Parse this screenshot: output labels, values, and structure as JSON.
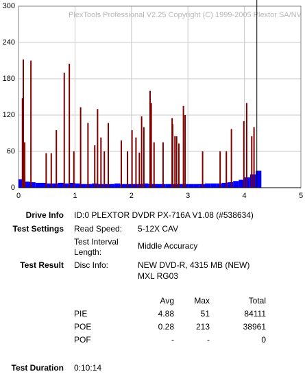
{
  "chart_data": {
    "type": "bar",
    "title": "PlexTools Professional V2.25 Copyright (C) 1999-2005 Plextor SA/NV",
    "series": [
      {
        "color": "#0000ff",
        "x": [
          0,
          0.1,
          0.2,
          0.3,
          0.4,
          0.5,
          0.6,
          0.7,
          0.8,
          0.9,
          1.0,
          1.1,
          1.2,
          1.3,
          1.4,
          1.5,
          1.6,
          1.7,
          1.8,
          1.9,
          2.0,
          2.1,
          2.2,
          2.3,
          2.4,
          2.5,
          2.6,
          2.7,
          2.8,
          2.9,
          3.0,
          3.1,
          3.2,
          3.3,
          3.4,
          3.5,
          3.6,
          3.7,
          3.8,
          3.9,
          4.0,
          4.1,
          4.2
        ],
        "values": [
          14,
          10,
          9,
          8,
          8,
          7,
          7,
          8,
          7,
          8,
          7,
          6,
          6,
          7,
          6,
          6,
          6,
          7,
          6,
          6,
          6,
          6,
          7,
          6,
          6,
          6,
          6,
          6,
          6,
          6,
          6,
          6,
          6,
          7,
          7,
          7,
          8,
          9,
          11,
          13,
          17,
          22,
          28
        ]
      },
      {
        "color": "#800000",
        "x": [
          0.07,
          0.085,
          0.11,
          0.22,
          0.49,
          0.58,
          0.67,
          0.81,
          0.9,
          0.98,
          1.1,
          1.23,
          1.35,
          1.4,
          1.46,
          1.52,
          1.59,
          1.82,
          1.93,
          2.01,
          2.08,
          2.14,
          2.18,
          2.22,
          2.33,
          2.35,
          2.4,
          2.56,
          2.72,
          2.73,
          2.77,
          2.8,
          2.84,
          2.92,
          2.95,
          3.26,
          3.57,
          3.68,
          3.77,
          3.99,
          4.04,
          4.13,
          4.17
        ],
        "values": [
          148,
          212,
          75,
          210,
          57,
          57,
          95,
          190,
          205,
          60,
          133,
          107,
          70,
          130,
          83,
          60,
          107,
          78,
          60,
          95,
          83,
          58,
          118,
          100,
          160,
          140,
          75,
          75,
          115,
          105,
          85,
          85,
          73,
          135,
          120,
          60,
          60,
          60,
          97,
          110,
          140,
          85,
          100
        ]
      }
    ],
    "end_marker": {
      "x": 4.22,
      "color": "#000000"
    },
    "xlim": [
      0,
      5
    ],
    "xticks": [
      0,
      1,
      2,
      3,
      4,
      5
    ],
    "ylim": [
      0,
      300
    ],
    "yticks": [
      0,
      60,
      120,
      180,
      240,
      300
    ],
    "grid": true
  },
  "report": {
    "drive_info": {
      "label": "Drive Info",
      "value": "ID:0 PLEXTOR DVDR PX-716A V1.08 (#538634)"
    },
    "test_settings": {
      "label": "Test Settings",
      "read_speed_label": "Read Speed:",
      "read_speed": "5-12X CAV",
      "interval_label_1": "Test Interval",
      "interval_label_2": "Length:",
      "interval": "Middle Accuracy"
    },
    "test_result": {
      "label": "Test Result",
      "disc_info_label": "Disc Info:",
      "disc_line_1": "NEW DVD-R, 4315 MB (NEW)",
      "disc_line_2": "MXL RG03"
    },
    "table": {
      "headers": [
        "Avg",
        "Max",
        "Total"
      ],
      "rows": [
        [
          "PIE",
          "4.88",
          "51",
          "84111"
        ],
        [
          "POE",
          "0.28",
          "213",
          "38961"
        ],
        [
          "POF",
          "-",
          "-",
          "0"
        ]
      ]
    },
    "test_duration": {
      "label": "Test Duration",
      "value": "0:10:14"
    }
  }
}
